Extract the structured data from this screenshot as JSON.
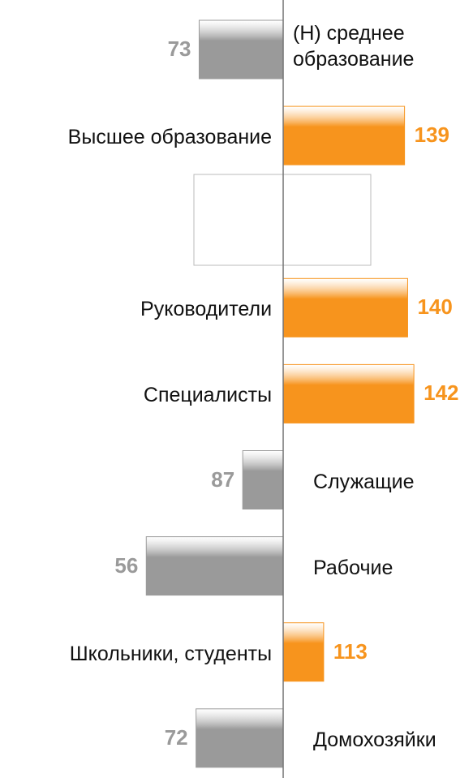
{
  "chart_data": {
    "type": "bar",
    "orientation": "horizontal",
    "categories": [
      "(Н) среднее образование",
      "Высшее образование",
      null,
      "Руководители",
      "Специалисты",
      "Служащие",
      "Рабочие",
      "Школьники, студенты",
      "Домохозяйки"
    ],
    "values": [
      73,
      139,
      null,
      140,
      142,
      87,
      56,
      113,
      72
    ],
    "baseline": 100,
    "xlim": [
      9,
      161
    ],
    "color_above": "#f7941d",
    "color_below": "#9a9a9a"
  }
}
